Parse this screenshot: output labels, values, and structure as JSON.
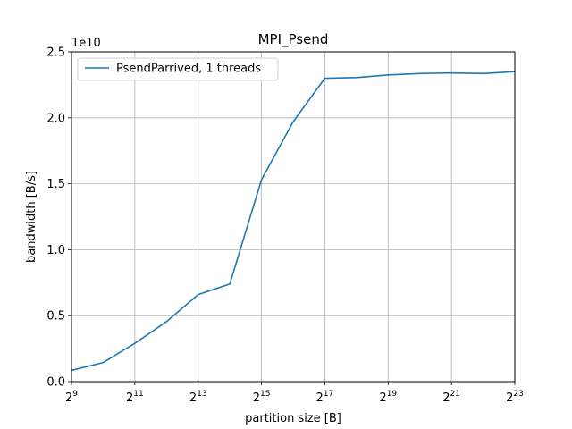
{
  "chart_data": {
    "type": "line",
    "title": "MPI_Psend",
    "xlabel": "partition size [B]",
    "ylabel": "bandwidth [B/s]",
    "x_scale": "log2",
    "x": [
      512,
      1024,
      2048,
      4096,
      8192,
      16384,
      32768,
      65536,
      131072,
      262144,
      524288,
      1048576,
      2097152,
      4194304,
      8388608
    ],
    "xlim": [
      512,
      8388608
    ],
    "ylim": [
      0,
      25000000000
    ],
    "y_multiplier_label": "1e10",
    "x_ticks": [
      {
        "value": 512,
        "base": "2",
        "exp": "9"
      },
      {
        "value": 2048,
        "base": "2",
        "exp": "11"
      },
      {
        "value": 8192,
        "base": "2",
        "exp": "13"
      },
      {
        "value": 32768,
        "base": "2",
        "exp": "15"
      },
      {
        "value": 131072,
        "base": "2",
        "exp": "17"
      },
      {
        "value": 524288,
        "base": "2",
        "exp": "19"
      },
      {
        "value": 2097152,
        "base": "2",
        "exp": "21"
      },
      {
        "value": 8388608,
        "base": "2",
        "exp": "23"
      }
    ],
    "y_ticks": [
      {
        "value": 0,
        "label": "0.0"
      },
      {
        "value": 5000000000,
        "label": "0.5"
      },
      {
        "value": 10000000000,
        "label": "1.0"
      },
      {
        "value": 15000000000,
        "label": "1.5"
      },
      {
        "value": 20000000000,
        "label": "2.0"
      },
      {
        "value": 25000000000,
        "label": "2.5"
      }
    ],
    "grid": true,
    "legend_position": "top-left",
    "series": [
      {
        "name": "PsendParrived, 1 threads",
        "color": "#1f77b4",
        "values": [
          850000000,
          1450000000,
          2900000000,
          4550000000,
          6600000000,
          7400000000,
          15300000000,
          19700000000,
          23000000000,
          23050000000,
          23250000000,
          23350000000,
          23400000000,
          23350000000,
          23500000000
        ]
      }
    ]
  }
}
